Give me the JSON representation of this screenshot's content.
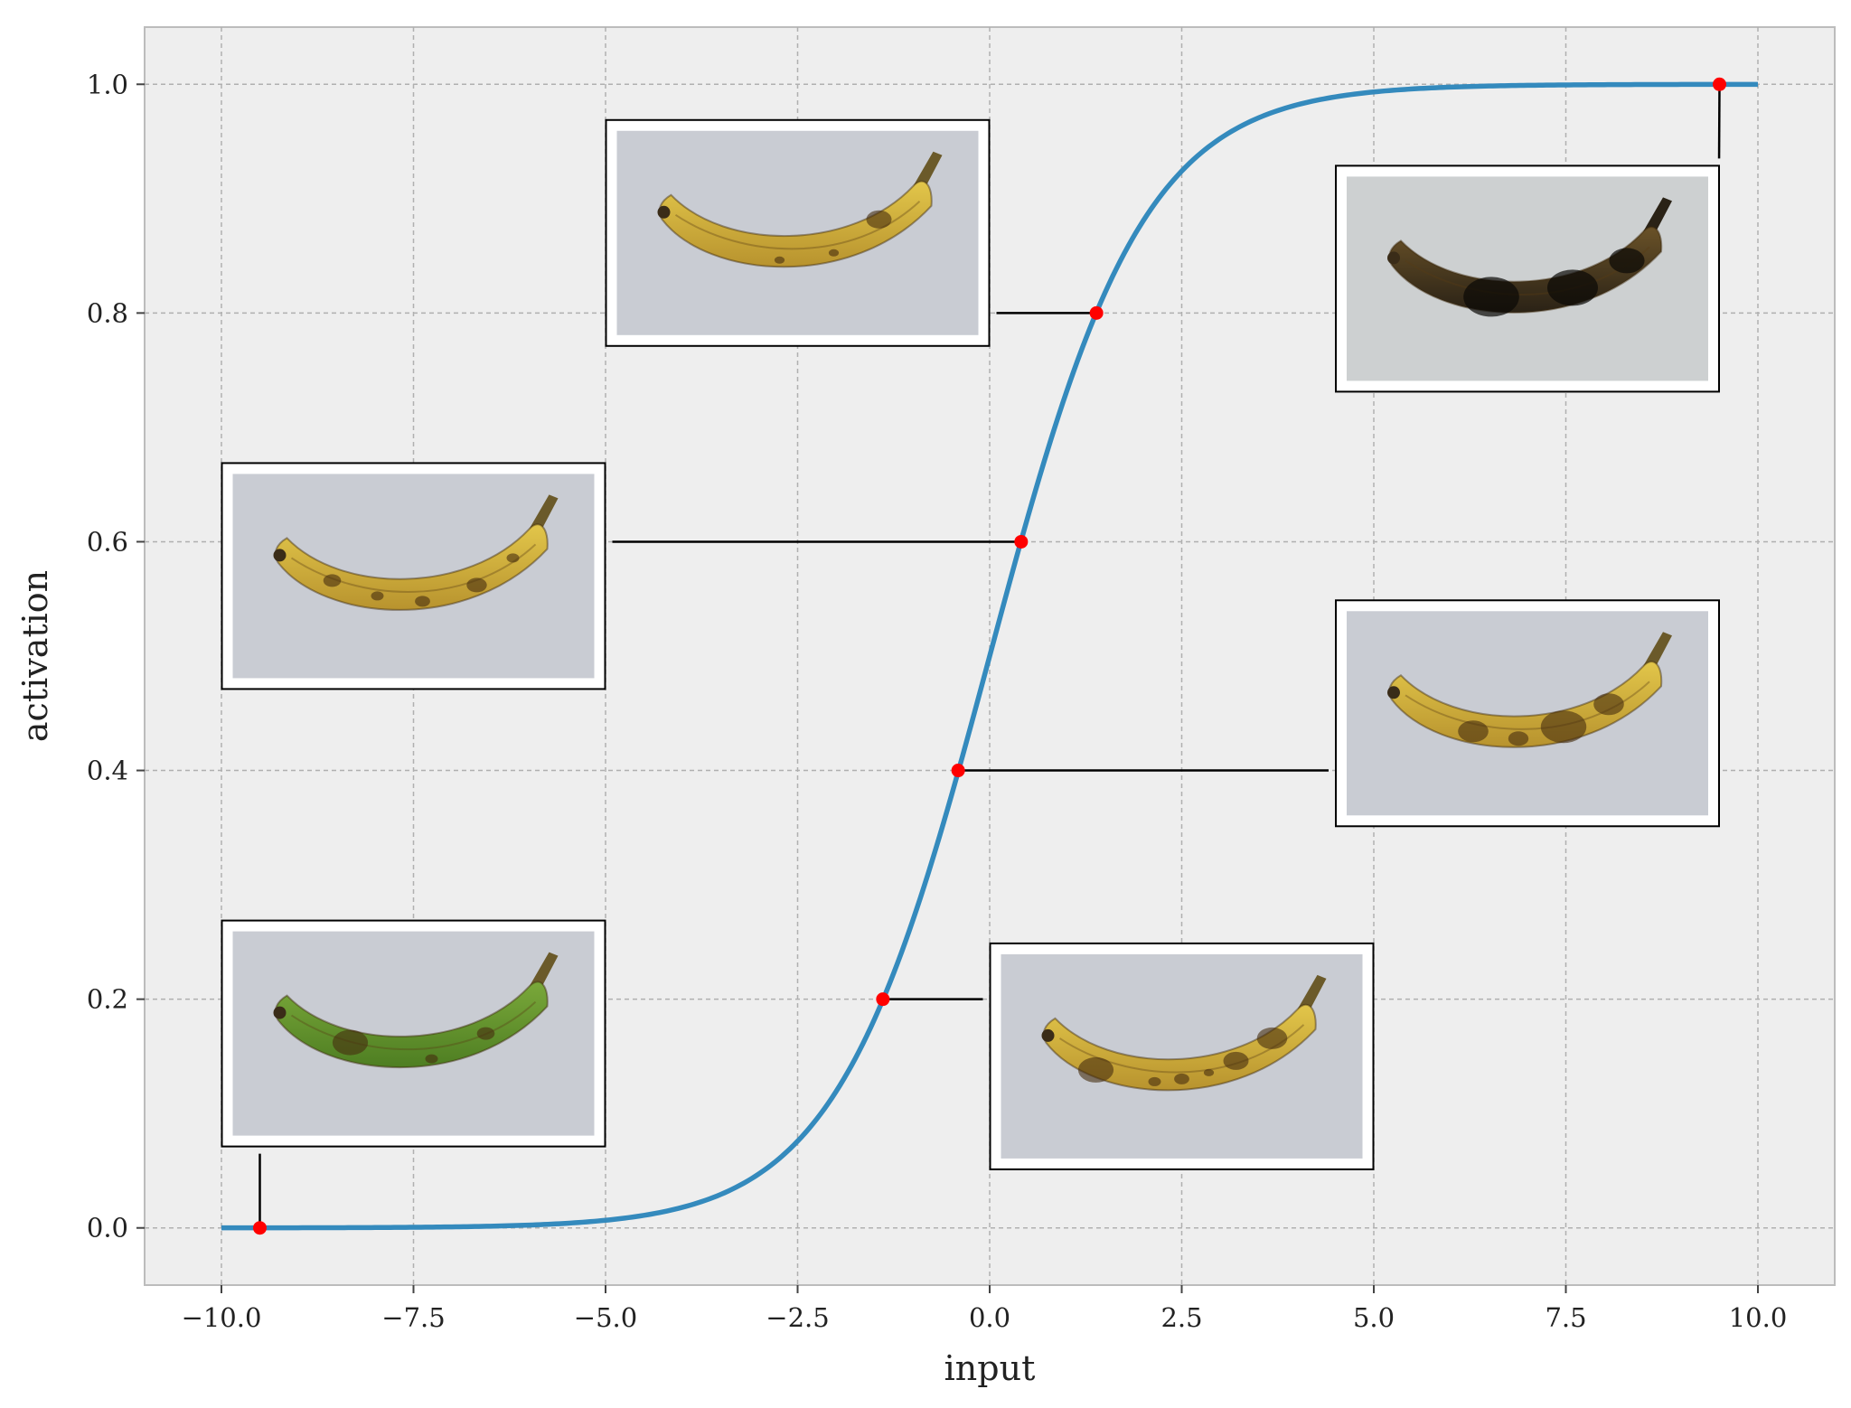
{
  "chart_data": {
    "type": "line",
    "title": "",
    "xlabel": "input",
    "ylabel": "activation",
    "xlim": [
      -11,
      11
    ],
    "ylim": [
      -0.05,
      1.05
    ],
    "grid": true,
    "x_ticks": [
      -10,
      -7.5,
      -5,
      -2.5,
      0,
      2.5,
      5,
      7.5,
      10
    ],
    "x_tick_labels": [
      "−10.0",
      "−7.5",
      "−5.0",
      "−2.5",
      "0.0",
      "2.5",
      "5.0",
      "7.5",
      "10.0"
    ],
    "y_ticks": [
      0,
      0.2,
      0.4,
      0.6,
      0.8,
      1.0
    ],
    "y_tick_labels": [
      "0.0",
      "0.2",
      "0.4",
      "0.6",
      "0.8",
      "1.0"
    ],
    "series": [
      {
        "function": "sigmoid",
        "x_range": [
          -10,
          10
        ],
        "color": "#348abd"
      }
    ],
    "marked_points": [
      {
        "x": -9.5,
        "y": 0.0,
        "banana": "green",
        "image_x": -7.5,
        "image_y": 0.17
      },
      {
        "x": -1.39,
        "y": 0.2,
        "banana": "yellow-brown-spots",
        "image_x": 2.5,
        "image_y": 0.15
      },
      {
        "x": -0.41,
        "y": 0.4,
        "banana": "yellow-brown-streaks",
        "image_x": 7.0,
        "image_y": 0.45
      },
      {
        "x": 0.41,
        "y": 0.6,
        "banana": "yellow-freckled",
        "image_x": -7.5,
        "image_y": 0.57
      },
      {
        "x": 1.39,
        "y": 0.8,
        "banana": "yellow-few-spots",
        "image_x": -2.5,
        "image_y": 0.87
      },
      {
        "x": 9.5,
        "y": 1.0,
        "banana": "black-overripe",
        "image_x": 7.0,
        "image_y": 0.83
      }
    ],
    "marker_color": "#ff0000",
    "background_color": "#eeeeee"
  }
}
